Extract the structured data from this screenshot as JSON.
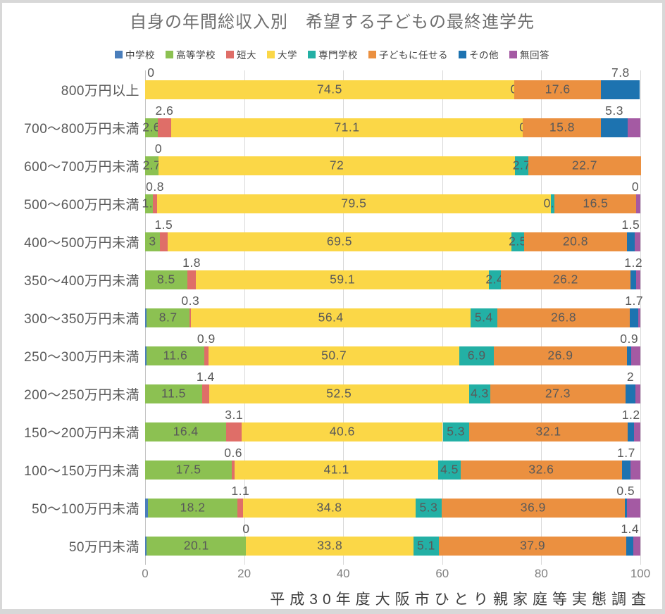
{
  "title": "自身の年間総収入別　希望する子どもの最終進学先",
  "footer": "平成30年度大阪市ひとり親家庭等実態調査",
  "chart_data": {
    "type": "bar",
    "stacked": true,
    "orientation": "horizontal",
    "unit": "percent",
    "xlim": [
      0,
      100
    ],
    "x_ticks": [
      "0",
      "20",
      "40",
      "60",
      "80",
      "100"
    ],
    "grid": true,
    "legend_position": "top",
    "series": [
      {
        "name": "中学校",
        "color": "#4a7ebb"
      },
      {
        "name": "高等学校",
        "color": "#8cc152"
      },
      {
        "name": "短大",
        "color": "#df6e68"
      },
      {
        "name": "大学",
        "color": "#fbd747"
      },
      {
        "name": "専門学校",
        "color": "#23b0a5"
      },
      {
        "name": "子どもに任せる",
        "color": "#eb9040"
      },
      {
        "name": "その他",
        "color": "#1d73b0"
      },
      {
        "name": "無回答",
        "color": "#a45aa3"
      }
    ],
    "categories": [
      "800万円以上",
      "700～800万円未満",
      "600～700万円未満",
      "500～600万円未満",
      "400～500万円未満",
      "350～400万円未満",
      "300～350万円未満",
      "250～300万円未満",
      "200～250万円未満",
      "150～200万円未満",
      "100～150万円未満",
      "50～100万円未満",
      "50万円未満"
    ],
    "rows": [
      {
        "category": "800万円以上",
        "values": [
          0,
          0,
          0,
          74.5,
          0,
          17.6,
          7.8,
          0
        ],
        "labels": [
          null,
          {
            "t": "0",
            "p": "in"
          },
          {
            "t": "0",
            "p": "up"
          },
          {
            "t": "74.5",
            "p": "in"
          },
          {
            "t": "0",
            "p": "in"
          },
          {
            "t": "17.6",
            "p": "in"
          },
          {
            "t": "7.8",
            "p": "up"
          },
          null
        ]
      },
      {
        "category": "700～800万円未満",
        "values": [
          0,
          2.6,
          2.6,
          71.1,
          0,
          15.8,
          5.3,
          2.6
        ],
        "labels": [
          null,
          {
            "t": "2.6",
            "p": "in"
          },
          {
            "t": "2.6",
            "p": "up"
          },
          {
            "t": "71.1",
            "p": "in"
          },
          {
            "t": "0",
            "p": "in"
          },
          {
            "t": "15.8",
            "p": "in"
          },
          {
            "t": "5.3",
            "p": "up"
          },
          null
        ]
      },
      {
        "category": "600～700万円未満",
        "values": [
          0,
          2.7,
          0,
          72,
          2.7,
          22.7,
          0,
          0
        ],
        "labels": [
          null,
          {
            "t": "2.7",
            "p": "in"
          },
          {
            "t": "0",
            "p": "up"
          },
          {
            "t": "72",
            "p": "in"
          },
          {
            "t": "2.7",
            "p": "in"
          },
          {
            "t": "22.7",
            "p": "in"
          },
          null,
          null
        ]
      },
      {
        "category": "500～600万円未満",
        "values": [
          0,
          1.6,
          0.8,
          79.5,
          0.8,
          16.5,
          0,
          0.8
        ],
        "labels": [
          null,
          {
            "t": "1.6",
            "p": "in"
          },
          {
            "t": "0.8",
            "p": "up"
          },
          {
            "t": "79.5",
            "p": "in"
          },
          {
            "t": "0.8",
            "p": "in"
          },
          {
            "t": "16.5",
            "p": "in"
          },
          {
            "t": "0",
            "p": "up"
          },
          null
        ]
      },
      {
        "category": "400～500万円未満",
        "values": [
          0,
          3,
          1.5,
          69.5,
          2.5,
          20.8,
          1.5,
          1.2
        ],
        "labels": [
          null,
          {
            "t": "3",
            "p": "in"
          },
          {
            "t": "1.5",
            "p": "up"
          },
          {
            "t": "69.5",
            "p": "in"
          },
          {
            "t": "2.5",
            "p": "in"
          },
          {
            "t": "20.8",
            "p": "in"
          },
          {
            "t": "1.5",
            "p": "up"
          },
          null
        ]
      },
      {
        "category": "350～400万円未満",
        "values": [
          0,
          8.5,
          1.8,
          59.1,
          2.4,
          26.2,
          1.2,
          0.8
        ],
        "labels": [
          null,
          {
            "t": "8.5",
            "p": "in"
          },
          {
            "t": "1.8",
            "p": "up"
          },
          {
            "t": "59.1",
            "p": "in"
          },
          {
            "t": "2.4",
            "p": "in"
          },
          {
            "t": "26.2",
            "p": "in"
          },
          {
            "t": "1.2",
            "p": "up"
          },
          null
        ]
      },
      {
        "category": "300～350万円未満",
        "values": [
          0.3,
          8.7,
          0.3,
          56.4,
          5.4,
          26.8,
          1.7,
          0.4
        ],
        "labels": [
          null,
          {
            "t": "8.7",
            "p": "in"
          },
          {
            "t": "0.3",
            "p": "up"
          },
          {
            "t": "56.4",
            "p": "in"
          },
          {
            "t": "5.4",
            "p": "in"
          },
          {
            "t": "26.8",
            "p": "in"
          },
          {
            "t": "1.7",
            "p": "up"
          },
          null
        ]
      },
      {
        "category": "250～300万円未満",
        "values": [
          0.3,
          11.6,
          0.9,
          50.7,
          6.9,
          26.9,
          0.9,
          1.8
        ],
        "labels": [
          null,
          {
            "t": "11.6",
            "p": "in"
          },
          {
            "t": "0.9",
            "p": "up"
          },
          {
            "t": "50.7",
            "p": "in"
          },
          {
            "t": "6.9",
            "p": "in"
          },
          {
            "t": "26.9",
            "p": "in"
          },
          {
            "t": "0.9",
            "p": "up"
          },
          null
        ]
      },
      {
        "category": "200～250万円未満",
        "values": [
          0,
          11.5,
          1.4,
          52.5,
          4.3,
          27.3,
          2,
          1
        ],
        "labels": [
          null,
          {
            "t": "11.5",
            "p": "in"
          },
          {
            "t": "1.4",
            "p": "up"
          },
          {
            "t": "52.5",
            "p": "in"
          },
          {
            "t": "4.3",
            "p": "in"
          },
          {
            "t": "27.3",
            "p": "in"
          },
          {
            "t": "2",
            "p": "up"
          },
          null
        ]
      },
      {
        "category": "150～200万円未満",
        "values": [
          0,
          16.4,
          3.1,
          40.6,
          5.3,
          32.1,
          1.2,
          1.3
        ],
        "labels": [
          null,
          {
            "t": "16.4",
            "p": "in"
          },
          {
            "t": "3.1",
            "p": "up"
          },
          {
            "t": "40.6",
            "p": "in"
          },
          {
            "t": "5.3",
            "p": "in"
          },
          {
            "t": "32.1",
            "p": "in"
          },
          {
            "t": "1.2",
            "p": "up"
          },
          null
        ]
      },
      {
        "category": "100～150万円未満",
        "values": [
          0,
          17.5,
          0.6,
          41.1,
          4.5,
          32.6,
          1.7,
          2
        ],
        "labels": [
          null,
          {
            "t": "17.5",
            "p": "in"
          },
          {
            "t": "0.6",
            "p": "up"
          },
          {
            "t": "41.1",
            "p": "in"
          },
          {
            "t": "4.5",
            "p": "in"
          },
          {
            "t": "32.6",
            "p": "in"
          },
          {
            "t": "1.7",
            "p": "up"
          },
          null
        ]
      },
      {
        "category": "50～100万円未満",
        "values": [
          0.5,
          18.2,
          1.1,
          34.8,
          5.3,
          36.9,
          0.5,
          2.7
        ],
        "labels": [
          null,
          {
            "t": "18.2",
            "p": "in"
          },
          {
            "t": "1.1",
            "p": "up"
          },
          {
            "t": "34.8",
            "p": "in"
          },
          {
            "t": "5.3",
            "p": "in"
          },
          {
            "t": "36.9",
            "p": "in"
          },
          {
            "t": "0.5",
            "p": "up"
          },
          null
        ]
      },
      {
        "category": "50万円未満",
        "values": [
          0.3,
          20.1,
          0,
          33.8,
          5.1,
          37.9,
          1.4,
          1.4
        ],
        "labels": [
          null,
          {
            "t": "20.1",
            "p": "in"
          },
          {
            "t": "0",
            "p": "up"
          },
          {
            "t": "33.8",
            "p": "in"
          },
          {
            "t": "5.1",
            "p": "in"
          },
          {
            "t": "37.9",
            "p": "in"
          },
          {
            "t": "1.4",
            "p": "up"
          },
          null
        ]
      }
    ]
  }
}
